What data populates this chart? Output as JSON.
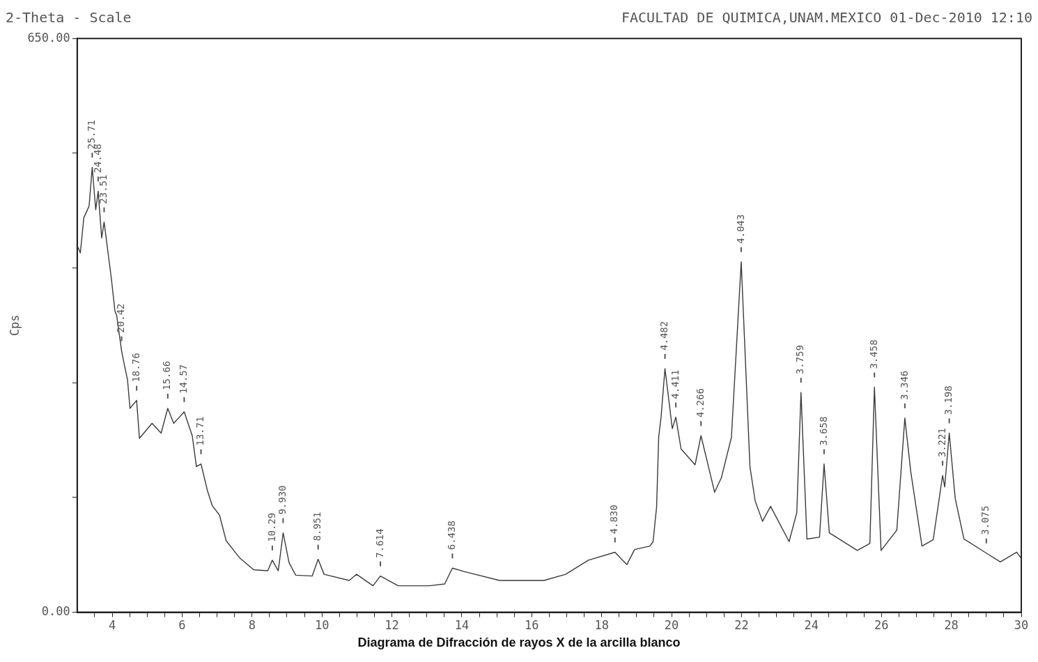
{
  "chart_data": {
    "type": "line",
    "title": "2-Theta - Scale",
    "subtitle": "FACULTAD DE QUIMICA,UNAM.MEXICO 01-Dec-2010 12:10",
    "ylabel": "Cps",
    "x": [
      3.0,
      3.03,
      3.09,
      3.19,
      3.34,
      3.43,
      3.53,
      3.6,
      3.7,
      3.77,
      3.98,
      4.08,
      4.13,
      4.27,
      4.34,
      4.44,
      4.51,
      4.7,
      4.78,
      5.14,
      5.4,
      5.59,
      5.76,
      6.06,
      6.29,
      6.41,
      6.54,
      6.73,
      6.86,
      7.07,
      7.26,
      7.66,
      8.05,
      8.45,
      8.58,
      8.75,
      8.89,
      9.06,
      9.25,
      9.72,
      9.89,
      10.06,
      10.78,
      10.99,
      11.46,
      11.67,
      12.18,
      13.07,
      13.51,
      13.73,
      14.08,
      15.08,
      16.35,
      16.97,
      17.62,
      18.38,
      18.72,
      18.94,
      19.38,
      19.47,
      19.57,
      19.63,
      19.7,
      19.81,
      20.02,
      20.12,
      20.27,
      20.67,
      20.84,
      21.23,
      21.42,
      21.71,
      21.99,
      22.24,
      22.39,
      22.6,
      22.83,
      23.36,
      23.58,
      23.7,
      23.87,
      24.23,
      24.36,
      24.51,
      25.31,
      25.67,
      25.8,
      25.99,
      26.44,
      26.67,
      26.84,
      27.16,
      27.48,
      27.75,
      27.81,
      27.94,
      28.11,
      28.36,
      29.0,
      29.4,
      29.87,
      30.0
    ],
    "values": [
      412,
      413,
      407,
      447,
      460,
      504,
      456,
      477,
      424,
      442,
      377,
      341,
      336,
      296,
      282,
      263,
      231,
      240,
      197,
      214,
      203,
      231,
      214,
      227,
      200,
      165,
      168,
      137,
      121,
      110,
      81,
      61,
      48,
      47,
      59,
      47,
      90,
      56,
      42,
      41,
      60,
      43,
      36,
      43,
      30,
      41,
      30,
      30,
      32,
      50,
      46,
      36,
      36,
      43,
      59,
      68,
      54,
      71,
      75,
      80,
      119,
      198,
      222,
      276,
      208,
      221,
      185,
      167,
      200,
      136,
      152,
      198,
      397,
      165,
      126,
      103,
      120,
      80,
      113,
      249,
      83,
      85,
      168,
      90,
      70,
      78,
      255,
      70,
      93,
      220,
      159,
      75,
      82,
      155,
      142,
      203,
      129,
      83,
      67,
      57,
      68,
      61
    ],
    "color": "#3a3a3a",
    "marker": "none",
    "line_style": "solid",
    "grid": false,
    "legend": false,
    "xlim": [
      3,
      30
    ],
    "xticks": [
      {
        "value": 3.5,
        "label": null
      },
      4,
      {
        "value": 4.5,
        "label": null
      },
      {
        "value": 5,
        "label": null
      },
      {
        "value": 5.5,
        "label": null
      },
      6,
      {
        "value": 6.5,
        "label": null
      },
      {
        "value": 7,
        "label": null
      },
      {
        "value": 7.5,
        "label": null
      },
      8,
      {
        "value": 8.5,
        "label": null
      },
      {
        "value": 9,
        "label": null
      },
      {
        "value": 9.5,
        "label": null
      },
      10,
      {
        "value": 10.5,
        "label": null
      },
      {
        "value": 11,
        "label": null
      },
      {
        "value": 11.5,
        "label": null
      },
      12,
      {
        "value": 12.5,
        "label": null
      },
      {
        "value": 13,
        "label": null
      },
      {
        "value": 13.5,
        "label": null
      },
      14,
      {
        "value": 14.5,
        "label": null
      },
      {
        "value": 15,
        "label": null
      },
      {
        "value": 15.5,
        "label": null
      },
      16,
      {
        "value": 16.5,
        "label": null
      },
      {
        "value": 17,
        "label": null
      },
      {
        "value": 17.5,
        "label": null
      },
      18,
      {
        "value": 18.5,
        "label": null
      },
      {
        "value": 19,
        "label": null
      },
      {
        "value": 19.5,
        "label": null
      },
      20,
      {
        "value": 20.5,
        "label": null
      },
      {
        "value": 21,
        "label": null
      },
      {
        "value": 21.5,
        "label": null
      },
      22,
      {
        "value": 22.5,
        "label": null
      },
      {
        "value": 23,
        "label": null
      },
      {
        "value": 23.5,
        "label": null
      },
      24,
      {
        "value": 24.5,
        "label": null
      },
      {
        "value": 25,
        "label": null
      },
      {
        "value": 25.5,
        "label": null
      },
      26,
      {
        "value": 26.5,
        "label": null
      },
      {
        "value": 27,
        "label": null
      },
      {
        "value": 27.5,
        "label": null
      },
      28,
      {
        "value": 28.5,
        "label": null
      },
      {
        "value": 29,
        "label": null
      },
      {
        "value": 29.5,
        "label": null
      },
      30
    ],
    "ylim": [
      0,
      650
    ],
    "yticks": [
      {
        "value": 0,
        "label": "0.00"
      },
      {
        "value": 130,
        "label": null
      },
      {
        "value": 260,
        "label": null
      },
      {
        "value": 390,
        "label": null
      },
      {
        "value": 520,
        "label": null
      },
      {
        "value": 650,
        "label": "650.00"
      }
    ],
    "annotations": [
      {
        "text": "25.71",
        "x": 3.43,
        "y": 504
      },
      {
        "text": "24.48",
        "x": 3.6,
        "y": 477
      },
      {
        "text": "23.51",
        "x": 3.77,
        "y": 442
      },
      {
        "text": "20.42",
        "x": 4.27,
        "y": 296
      },
      {
        "text": "18.76",
        "x": 4.7,
        "y": 240
      },
      {
        "text": "15.66",
        "x": 5.59,
        "y": 231
      },
      {
        "text": "14.57",
        "x": 6.06,
        "y": 227
      },
      {
        "text": "13.71",
        "x": 6.54,
        "y": 168
      },
      {
        "text": "10.29",
        "x": 8.58,
        "y": 59
      },
      {
        "text": "9.930",
        "x": 8.89,
        "y": 90
      },
      {
        "text": "8.951",
        "x": 9.89,
        "y": 60
      },
      {
        "text": "7.614",
        "x": 11.67,
        "y": 41
      },
      {
        "text": "6.438",
        "x": 13.73,
        "y": 50
      },
      {
        "text": "4.830",
        "x": 18.38,
        "y": 68
      },
      {
        "text": "4.482",
        "x": 19.81,
        "y": 276
      },
      {
        "text": "4.411",
        "x": 20.12,
        "y": 221
      },
      {
        "text": "4.266",
        "x": 20.84,
        "y": 200
      },
      {
        "text": "4.043",
        "x": 21.99,
        "y": 397
      },
      {
        "text": "3.759",
        "x": 23.7,
        "y": 249
      },
      {
        "text": "3.658",
        "x": 24.36,
        "y": 168
      },
      {
        "text": "3.458",
        "x": 25.8,
        "y": 255
      },
      {
        "text": "3.346",
        "x": 26.67,
        "y": 220
      },
      {
        "text": "3.221",
        "x": 27.75,
        "y": 155
      },
      {
        "text": "3.198",
        "x": 27.94,
        "y": 203
      },
      {
        "text": "3.075",
        "x": 29.0,
        "y": 67
      },
      "Diagrama de Difracción de rayos X de la arcilla blanco"
    ]
  }
}
